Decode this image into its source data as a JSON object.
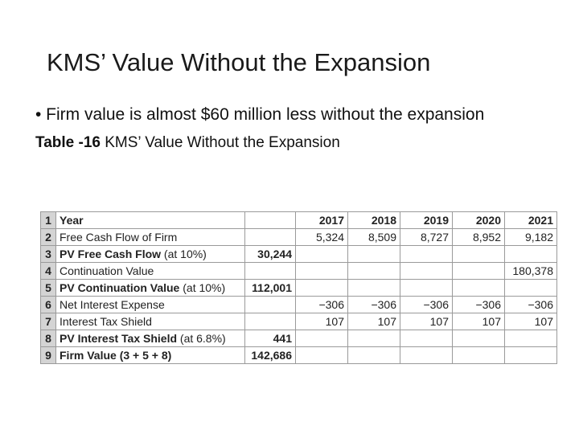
{
  "slide": {
    "title": "KMS’ Value Without the Expansion",
    "bullet": "• Firm value is almost $60 million less without the expansion",
    "caption_bold": "Table -16",
    "caption_rest": " KMS’ Value Without the Expansion"
  },
  "table": {
    "rows": [
      {
        "num": "1",
        "label": "Year",
        "label_note": "",
        "pv": "",
        "y2017": "2017",
        "y2018": "2018",
        "y2019": "2019",
        "y2020": "2020",
        "y2021": "2021"
      },
      {
        "num": "2",
        "label": "Free Cash Flow of Firm",
        "label_note": "",
        "pv": "",
        "y2017": "5,324",
        "y2018": "8,509",
        "y2019": "8,727",
        "y2020": "8,952",
        "y2021": "9,182"
      },
      {
        "num": "3",
        "label": "PV Free Cash Flow",
        "label_note": " (at 10%)",
        "pv": "30,244",
        "y2017": "",
        "y2018": "",
        "y2019": "",
        "y2020": "",
        "y2021": ""
      },
      {
        "num": "4",
        "label": "Continuation Value",
        "label_note": "",
        "pv": "",
        "y2017": "",
        "y2018": "",
        "y2019": "",
        "y2020": "",
        "y2021": "180,378"
      },
      {
        "num": "5",
        "label": "PV Continuation Value",
        "label_note": " (at 10%)",
        "pv": "112,001",
        "y2017": "",
        "y2018": "",
        "y2019": "",
        "y2020": "",
        "y2021": ""
      },
      {
        "num": "6",
        "label": "Net Interest Expense",
        "label_note": "",
        "pv": "",
        "y2017": "−306",
        "y2018": "−306",
        "y2019": "−306",
        "y2020": "−306",
        "y2021": "−306"
      },
      {
        "num": "7",
        "label": "Interest Tax Shield",
        "label_note": "",
        "pv": "",
        "y2017": "107",
        "y2018": "107",
        "y2019": "107",
        "y2020": "107",
        "y2021": "107"
      },
      {
        "num": "8",
        "label": "PV Interest Tax Shield",
        "label_note": " (at 6.8%)",
        "pv": "441",
        "y2017": "",
        "y2018": "",
        "y2019": "",
        "y2020": "",
        "y2021": ""
      },
      {
        "num": "9",
        "label": "Firm Value (3 + 5 + 8)",
        "label_note": "",
        "pv": "142,686",
        "y2017": "",
        "y2018": "",
        "y2019": "",
        "y2020": "",
        "y2021": ""
      }
    ]
  }
}
